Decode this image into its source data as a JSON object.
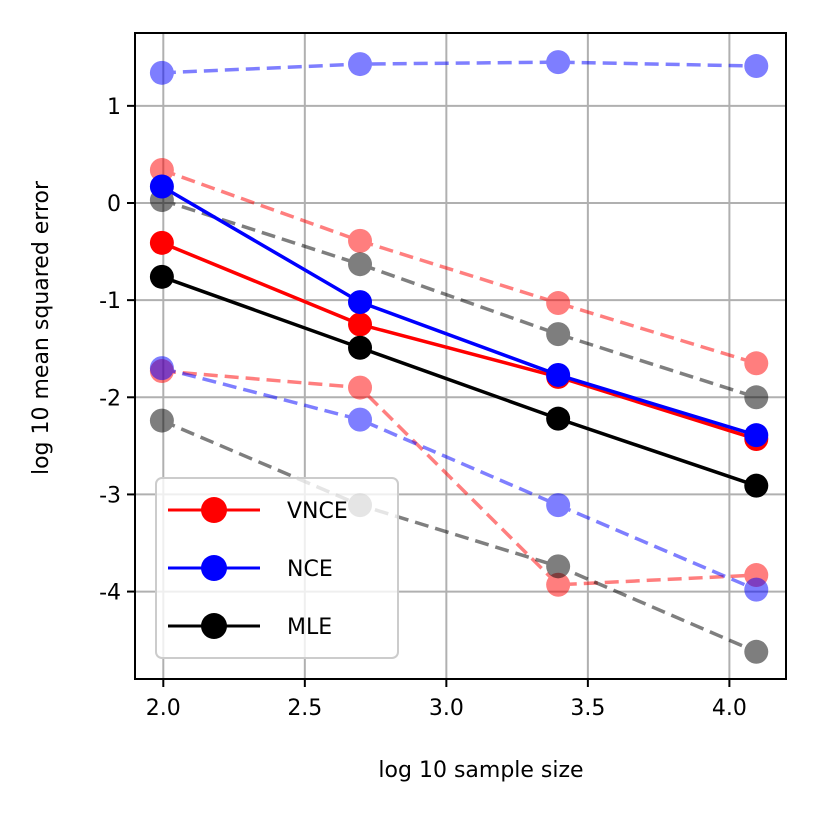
{
  "chart_data": {
    "type": "line",
    "xlabel": "log 10 sample size",
    "ylabel": "log 10 mean squared error",
    "xlim": [
      1.9,
      4.2
    ],
    "ylim": [
      -4.9,
      1.75
    ],
    "xticks": [
      2.0,
      2.5,
      3.0,
      3.5,
      4.0
    ],
    "xtick_labels": [
      "2.0",
      "2.5",
      "3.0",
      "3.5",
      "4.0"
    ],
    "yticks": [
      1,
      0,
      -1,
      -2,
      -3,
      -4
    ],
    "ytick_labels": [
      "1",
      "0",
      "-1",
      "-2",
      "-3",
      "-4"
    ],
    "grid": true,
    "legend_position": "lower-left",
    "x": [
      1.995,
      2.695,
      3.395,
      4.095
    ],
    "series": [
      {
        "name": "VNCE",
        "color": "#ff0000",
        "style": "solid",
        "values": [
          -0.41,
          -1.25,
          -1.79,
          -2.43
        ]
      },
      {
        "name": "NCE",
        "color": "#0000ff",
        "style": "solid",
        "values": [
          0.17,
          -1.02,
          -1.77,
          -2.39
        ]
      },
      {
        "name": "MLE",
        "color": "#000000",
        "style": "solid",
        "values": [
          -0.76,
          -1.49,
          -2.22,
          -2.91
        ]
      },
      {
        "color": "#ff0000",
        "style": "dashed",
        "values": [
          0.34,
          -0.39,
          -1.03,
          -1.65
        ]
      },
      {
        "color": "#ff0000",
        "style": "dashed",
        "values": [
          -1.73,
          -1.9,
          -3.93,
          -3.83
        ]
      },
      {
        "color": "#0000ff",
        "style": "dashed",
        "values": [
          1.34,
          1.43,
          1.45,
          1.41
        ]
      },
      {
        "color": "#0000ff",
        "style": "dashed",
        "values": [
          -1.7,
          -2.23,
          -3.11,
          -3.98
        ]
      },
      {
        "color": "#000000",
        "style": "dashed",
        "values": [
          0.03,
          -0.63,
          -1.35,
          -2.0
        ]
      },
      {
        "color": "#000000",
        "style": "dashed",
        "values": [
          -2.24,
          -3.11,
          -3.74,
          -4.62
        ]
      }
    ]
  }
}
